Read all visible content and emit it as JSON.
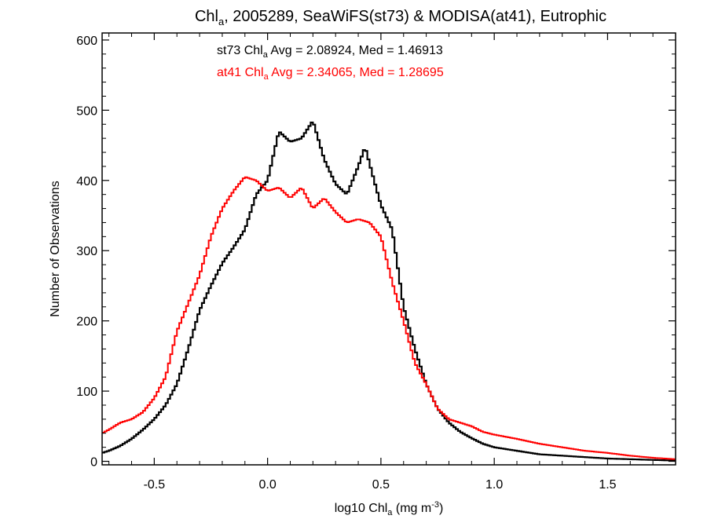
{
  "chart_data": {
    "type": "line",
    "title": {
      "pre": "Chl",
      "sub": "a",
      "post": ", 2005289, SeaWiFS(st73) & MODISA(at41), Eutrophic"
    },
    "xlabel": {
      "pre": "log10 Chl",
      "sub": "a",
      "mid": " (mg m",
      "sup": "-3",
      "post": ")"
    },
    "ylabel": "Number of Observations",
    "xlim": [
      -0.73,
      1.8
    ],
    "ylim": [
      -5,
      610
    ],
    "x_ticks": [
      -0.5,
      0.0,
      0.5,
      1.0,
      1.5
    ],
    "x_tick_labels": [
      "-0.5",
      "0.0",
      "0.5",
      "1.0",
      "1.5"
    ],
    "y_ticks": [
      0,
      100,
      200,
      300,
      400,
      500,
      600
    ],
    "y_tick_labels": [
      "0",
      "100",
      "200",
      "300",
      "400",
      "500",
      "600"
    ],
    "annotations": [
      {
        "pre": "st73 Chl",
        "sub": "a",
        "post": " Avg = 2.08924, Med = 1.46913",
        "color": "#000000"
      },
      {
        "pre": "at41 Chl",
        "sub": "a",
        "post": " Avg = 2.34065, Med = 1.28695",
        "color": "#ff0000"
      }
    ],
    "bin_width": 0.01,
    "series": [
      {
        "color": "#000000",
        "points": [
          [
            -0.73,
            12
          ],
          [
            -0.7,
            15
          ],
          [
            -0.65,
            22
          ],
          [
            -0.6,
            32
          ],
          [
            -0.55,
            45
          ],
          [
            -0.5,
            60
          ],
          [
            -0.45,
            80
          ],
          [
            -0.4,
            110
          ],
          [
            -0.35,
            160
          ],
          [
            -0.3,
            215
          ],
          [
            -0.25,
            250
          ],
          [
            -0.2,
            282
          ],
          [
            -0.15,
            305
          ],
          [
            -0.1,
            330
          ],
          [
            -0.05,
            380
          ],
          [
            0.0,
            400
          ],
          [
            0.05,
            470
          ],
          [
            0.1,
            455
          ],
          [
            0.15,
            460
          ],
          [
            0.2,
            485
          ],
          [
            0.25,
            430
          ],
          [
            0.3,
            395
          ],
          [
            0.35,
            380
          ],
          [
            0.4,
            420
          ],
          [
            0.43,
            448
          ],
          [
            0.47,
            400
          ],
          [
            0.5,
            365
          ],
          [
            0.55,
            330
          ],
          [
            0.6,
            220
          ],
          [
            0.65,
            160
          ],
          [
            0.7,
            110
          ],
          [
            0.75,
            75
          ],
          [
            0.8,
            55
          ],
          [
            0.85,
            42
          ],
          [
            0.9,
            33
          ],
          [
            0.95,
            25
          ],
          [
            1.0,
            20
          ],
          [
            1.1,
            15
          ],
          [
            1.2,
            10
          ],
          [
            1.3,
            8
          ],
          [
            1.4,
            6
          ],
          [
            1.5,
            4
          ],
          [
            1.6,
            3
          ],
          [
            1.7,
            2
          ],
          [
            1.8,
            1
          ]
        ]
      },
      {
        "color": "#ff0000",
        "points": [
          [
            -0.73,
            40
          ],
          [
            -0.7,
            45
          ],
          [
            -0.65,
            55
          ],
          [
            -0.6,
            60
          ],
          [
            -0.55,
            70
          ],
          [
            -0.5,
            90
          ],
          [
            -0.45,
            120
          ],
          [
            -0.4,
            185
          ],
          [
            -0.35,
            225
          ],
          [
            -0.3,
            265
          ],
          [
            -0.25,
            320
          ],
          [
            -0.2,
            360
          ],
          [
            -0.15,
            385
          ],
          [
            -0.1,
            405
          ],
          [
            -0.05,
            400
          ],
          [
            0.0,
            385
          ],
          [
            0.05,
            390
          ],
          [
            0.1,
            375
          ],
          [
            0.15,
            390
          ],
          [
            0.2,
            360
          ],
          [
            0.25,
            375
          ],
          [
            0.3,
            355
          ],
          [
            0.35,
            340
          ],
          [
            0.4,
            345
          ],
          [
            0.45,
            340
          ],
          [
            0.5,
            320
          ],
          [
            0.55,
            255
          ],
          [
            0.6,
            200
          ],
          [
            0.65,
            140
          ],
          [
            0.7,
            110
          ],
          [
            0.75,
            75
          ],
          [
            0.8,
            60
          ],
          [
            0.85,
            55
          ],
          [
            0.9,
            50
          ],
          [
            0.95,
            42
          ],
          [
            1.0,
            38
          ],
          [
            1.05,
            35
          ],
          [
            1.1,
            32
          ],
          [
            1.2,
            25
          ],
          [
            1.3,
            20
          ],
          [
            1.4,
            15
          ],
          [
            1.5,
            12
          ],
          [
            1.6,
            8
          ],
          [
            1.7,
            5
          ],
          [
            1.8,
            3
          ]
        ]
      }
    ]
  }
}
